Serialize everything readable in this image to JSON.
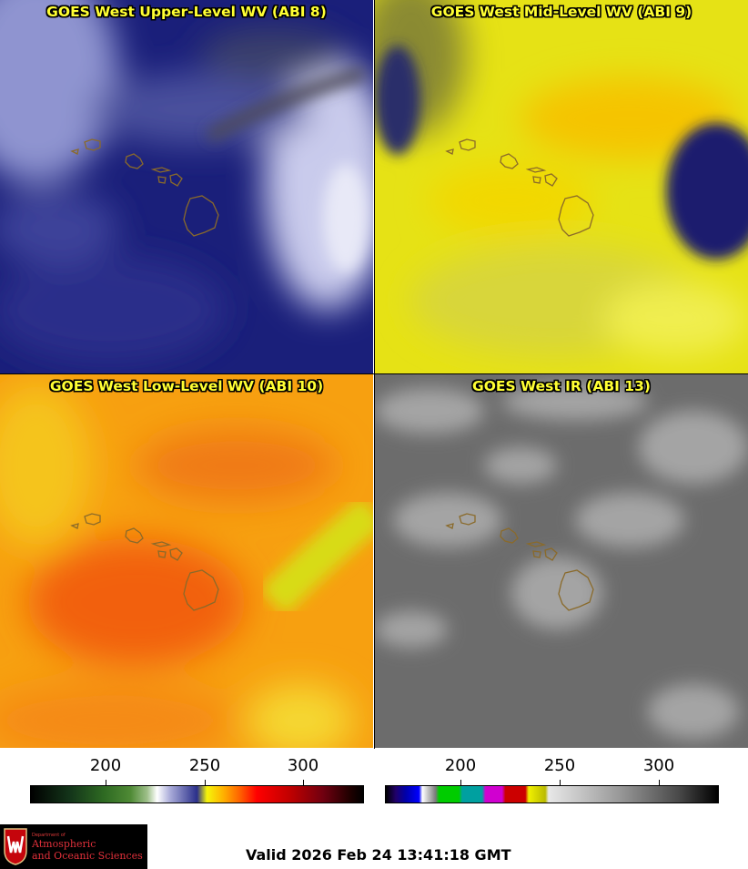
{
  "panels": [
    {
      "id": "abi8",
      "title": "GOES West Upper-Level WV (ABI 8)"
    },
    {
      "id": "abi9",
      "title": "GOES West Mid-Level WV (ABI 9)"
    },
    {
      "id": "abi10",
      "title": "GOES West Low-Level WV (ABI 10)"
    },
    {
      "id": "abi13",
      "title": "GOES West IR (ABI 13)"
    }
  ],
  "colorbars": [
    {
      "id": "wv",
      "ticks": [
        "200",
        "250",
        "300"
      ]
    },
    {
      "id": "ir",
      "ticks": [
        "200",
        "250",
        "300"
      ]
    }
  ],
  "logo": {
    "dept": "Department of",
    "line1": "Atmospheric",
    "line2": "and Oceanic Sciences"
  },
  "valid_time": "Valid 2026 Feb 24 13:41:18 GMT",
  "colors": {
    "title": "#ffff33",
    "coastline": "#8a6a2a"
  }
}
